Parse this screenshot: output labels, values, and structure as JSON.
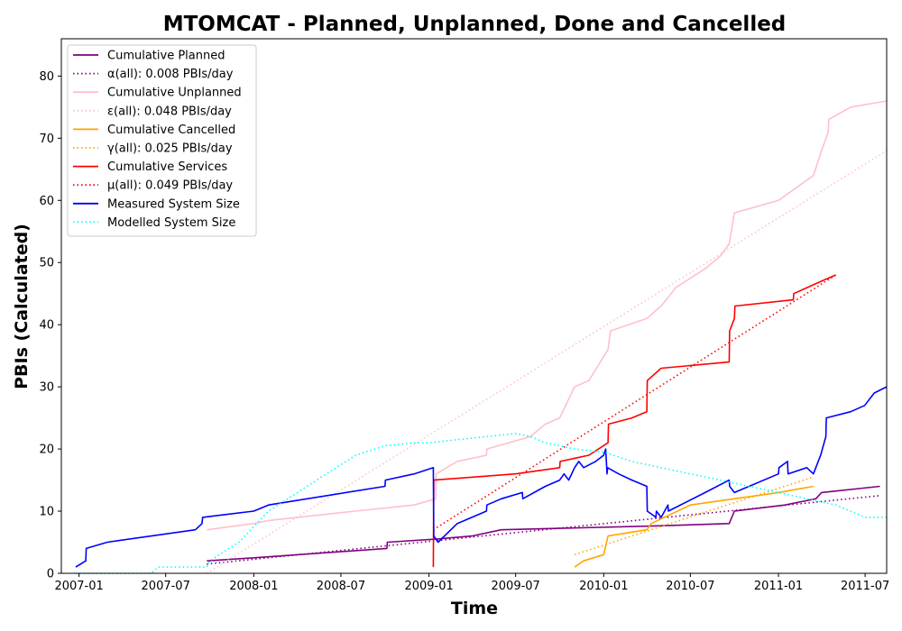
{
  "chart_data": {
    "type": "line",
    "title": "MTOMCAT - Planned, Unplanned, Done  and Cancelled",
    "xlabel": "Time",
    "ylabel": "PBIs (Calculated)",
    "x_ticks": [
      "2007-01",
      "2007-07",
      "2008-01",
      "2008-07",
      "2009-01",
      "2009-07",
      "2010-01",
      "2010-07",
      "2011-01",
      "2011-07"
    ],
    "y_ticks": [
      "0",
      "10",
      "20",
      "30",
      "40",
      "50",
      "60",
      "70",
      "80"
    ],
    "xlim": [
      "2006-11-25",
      "2011-08-15"
    ],
    "ylim": [
      0,
      86
    ],
    "grid": false,
    "legend_position": "upper-left",
    "series": [
      {
        "name": "Cumulative Planned",
        "color": "#800080",
        "style": "solid",
        "x": [
          "2007-09-25",
          "2008-01-01",
          "2008-10-05",
          "2008-10-06",
          "2009-01-15",
          "2009-04-01",
          "2009-06-01",
          "2010-04-10",
          "2010-09-20",
          "2010-10-01",
          "2011-01-15",
          "2011-03-20",
          "2011-04-01",
          "2011-08-01"
        ],
        "y": [
          2,
          2.5,
          4,
          5,
          5.5,
          6,
          7,
          7.6,
          8,
          10,
          11,
          12,
          13,
          14
        ]
      },
      {
        "name": "α(all): 0.008 PBIs/day",
        "color": "#800080",
        "style": "dotted",
        "x": [
          "2007-09-25",
          "2011-08-01"
        ],
        "y": [
          1.5,
          12.5
        ]
      },
      {
        "name": "Cumulative Unplanned",
        "color": "#ffc0cb",
        "style": "solid",
        "x": [
          "2007-09-25",
          "2008-01-01",
          "2008-02-01",
          "2008-08-01",
          "2008-12-01",
          "2009-01-15",
          "2009-01-16",
          "2009-03-01",
          "2009-05-01",
          "2009-05-02",
          "2009-08-01",
          "2009-09-01",
          "2009-10-01",
          "2009-11-01",
          "2009-12-01",
          "2010-01-10",
          "2010-01-15",
          "2010-04-01",
          "2010-05-01",
          "2010-06-01",
          "2010-08-01",
          "2010-09-01",
          "2010-09-20",
          "2010-10-01",
          "2011-01-01",
          "2011-03-15",
          "2011-04-01",
          "2011-04-15",
          "2011-04-16",
          "2011-06-01",
          "2011-08-15"
        ],
        "y": [
          7,
          8,
          8.5,
          10,
          11,
          12,
          16,
          18,
          19,
          20,
          22,
          24,
          25,
          30,
          31,
          36,
          39,
          41,
          43,
          46,
          49,
          51,
          53,
          58,
          60,
          64,
          68,
          71,
          73,
          75,
          76
        ]
      },
      {
        "name": "ε(all): 0.048 PBIs/day",
        "color": "#ffc0cb",
        "style": "dotted",
        "x": [
          "2007-09-25",
          "2011-08-15"
        ],
        "y": [
          0,
          68
        ]
      },
      {
        "name": "Cumulative Cancelled",
        "color": "#ffa500",
        "style": "solid",
        "x": [
          "2009-11-01",
          "2009-11-20",
          "2010-01-01",
          "2010-01-10",
          "2010-04-01",
          "2010-04-10",
          "2010-07-01",
          "2011-01-01",
          "2011-03-15"
        ],
        "y": [
          1,
          2,
          3,
          6,
          7,
          8,
          11,
          13,
          14
        ]
      },
      {
        "name": "γ(all): 0.025 PBIs/day",
        "color": "#ffa500",
        "style": "dotted",
        "x": [
          "2009-11-01",
          "2011-03-15"
        ],
        "y": [
          3,
          15.5
        ]
      },
      {
        "name": "Cumulative Services",
        "color": "#ff0000",
        "style": "solid",
        "x": [
          "2009-01-10",
          "2009-01-11",
          "2009-07-01",
          "2009-10-01",
          "2009-10-02",
          "2009-12-01",
          "2010-01-10",
          "2010-01-11",
          "2010-03-01",
          "2010-04-01",
          "2010-04-02",
          "2010-05-01",
          "2010-09-20",
          "2010-09-21",
          "2010-10-01",
          "2010-10-02",
          "2011-02-01",
          "2011-02-02",
          "2011-04-01",
          "2011-05-01"
        ],
        "y": [
          1,
          15,
          16,
          17,
          18,
          19,
          21,
          24,
          25,
          26,
          31,
          33,
          34,
          39,
          41,
          43,
          44,
          45,
          47,
          48
        ]
      },
      {
        "name": "μ(all): 0.049 PBIs/day",
        "color": "#ff0000",
        "style": "dotted",
        "x": [
          "2009-01-10",
          "2011-05-01"
        ],
        "y": [
          7,
          48
        ]
      },
      {
        "name": "Measured System Size",
        "color": "#0000ff",
        "style": "solid",
        "x": [
          "2006-12-25",
          "2007-01-15",
          "2007-01-16",
          "2007-03-01",
          "2007-09-01",
          "2007-09-15",
          "2007-09-16",
          "2008-01-01",
          "2008-02-01",
          "2008-10-01",
          "2008-10-02",
          "2008-12-01",
          "2009-01-10",
          "2009-01-11",
          "2009-01-20",
          "2009-03-01",
          "2009-05-01",
          "2009-05-02",
          "2009-06-01",
          "2009-07-15",
          "2009-07-16",
          "2009-09-01",
          "2009-10-01",
          "2009-10-10",
          "2009-10-20",
          "2009-11-01",
          "2009-11-10",
          "2009-11-20",
          "2009-12-15",
          "2010-01-01",
          "2010-01-05",
          "2010-01-08",
          "2010-01-09",
          "2010-02-01",
          "2010-03-01",
          "2010-04-01",
          "2010-04-02",
          "2010-04-20",
          "2010-04-21",
          "2010-05-01",
          "2010-05-15",
          "2010-05-16",
          "2010-08-01",
          "2010-09-20",
          "2010-09-21",
          "2010-10-01",
          "2011-01-01",
          "2011-01-02",
          "2011-01-20",
          "2011-01-21",
          "2011-03-01",
          "2011-03-15",
          "2011-03-30",
          "2011-04-10",
          "2011-04-11",
          "2011-06-01",
          "2011-06-30",
          "2011-07-20",
          "2011-08-15"
        ],
        "y": [
          1,
          2,
          4,
          5,
          7,
          8,
          9,
          10,
          11,
          14,
          15,
          16,
          17,
          6,
          5,
          8,
          10,
          11,
          12,
          13,
          12,
          14,
          15,
          16,
          15,
          17,
          18,
          17,
          18,
          19,
          20,
          16,
          17,
          16,
          15,
          14,
          10,
          9,
          10,
          9,
          11,
          10,
          13,
          15,
          14,
          13,
          16,
          17,
          18,
          16,
          17,
          16,
          19,
          22,
          25,
          26,
          27,
          29,
          30
        ]
      },
      {
        "name": "Modelled System Size",
        "color": "#00ffff",
        "style": "dotted",
        "x": [
          "2006-12-25",
          "2007-06-01",
          "2007-06-15",
          "2007-09-25",
          "2007-10-01",
          "2007-12-01",
          "2008-02-01",
          "2008-04-01",
          "2008-06-01",
          "2008-08-01",
          "2008-10-01",
          "2008-12-01",
          "2009-01-01",
          "2009-03-01",
          "2009-05-01",
          "2009-07-01",
          "2009-08-01",
          "2009-09-01",
          "2009-10-01",
          "2009-11-01",
          "2010-01-01",
          "2010-03-01",
          "2010-05-01",
          "2010-07-01",
          "2010-09-01",
          "2010-11-01",
          "2011-01-01",
          "2011-03-01",
          "2011-05-01",
          "2011-07-01",
          "2011-08-15"
        ],
        "y": [
          0,
          0,
          1,
          1,
          2,
          5,
          10,
          13,
          16,
          19,
          20.5,
          21,
          21,
          21.5,
          22,
          22.5,
          22,
          21,
          20.5,
          20,
          19.5,
          18,
          17,
          16,
          15,
          14,
          13,
          12,
          11,
          9,
          9
        ]
      }
    ]
  }
}
